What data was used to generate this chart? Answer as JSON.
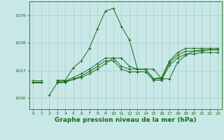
{
  "background_color": "#c8e8e8",
  "grid_color": "#aacccc",
  "line_color": "#1a6b1a",
  "xlabel": "Graphe pression niveau de la mer (hPa)",
  "xlabel_fontsize": 6.5,
  "xlim": [
    -0.5,
    23.5
  ],
  "ylim": [
    1035.6,
    1039.5
  ],
  "yticks": [
    1036,
    1037,
    1038,
    1039
  ],
  "xticks": [
    0,
    1,
    2,
    3,
    4,
    5,
    6,
    7,
    8,
    9,
    10,
    11,
    12,
    13,
    14,
    15,
    16,
    17,
    18,
    19,
    20,
    21,
    22,
    23
  ],
  "series1": {
    "x": [
      0,
      1,
      2,
      3,
      4,
      5,
      6,
      7,
      8,
      9,
      10,
      11,
      12,
      13,
      14,
      15,
      16,
      17,
      18,
      19,
      20,
      21,
      22,
      23
    ],
    "y": [
      1036.65,
      1036.65,
      null,
      1036.65,
      1036.65,
      1037.1,
      1037.35,
      1037.8,
      1038.5,
      1039.15,
      1039.25,
      1038.6,
      1038.1,
      1037.05,
      1037.05,
      1036.7,
      1036.75,
      1037.35,
      1037.65,
      1037.8,
      1037.8,
      1037.8,
      1037.8,
      1037.8
    ]
  },
  "series2": {
    "x": [
      0,
      1,
      2,
      3,
      4,
      5,
      6,
      7,
      8,
      9,
      10,
      11,
      12,
      13,
      14,
      15,
      16,
      17,
      18,
      19,
      20,
      21,
      22,
      23
    ],
    "y": [
      1036.6,
      1036.6,
      null,
      1036.6,
      1036.62,
      1036.75,
      1036.88,
      1037.05,
      1037.25,
      1037.45,
      1037.45,
      1037.15,
      1037.05,
      1037.05,
      1037.05,
      1036.7,
      1036.7,
      1037.3,
      1037.55,
      1037.7,
      1037.7,
      1037.75,
      1037.75,
      1037.75
    ]
  },
  "series3": {
    "x": [
      0,
      1,
      2,
      3,
      4,
      5,
      6,
      7,
      8,
      9,
      10,
      11,
      12,
      13,
      14,
      15,
      16,
      17,
      18,
      19,
      20,
      21,
      22,
      23
    ],
    "y": [
      1036.55,
      1036.55,
      null,
      1036.55,
      1036.57,
      1036.68,
      1036.8,
      1036.96,
      1037.15,
      1037.35,
      1037.35,
      1037.05,
      1036.95,
      1036.95,
      1036.95,
      1036.65,
      1036.65,
      1037.2,
      1037.45,
      1037.6,
      1037.6,
      1037.65,
      1037.65,
      1037.65
    ]
  },
  "series4": {
    "x": [
      2,
      3,
      4,
      5,
      6,
      7,
      8,
      9,
      10,
      11,
      12,
      13,
      14,
      15,
      16,
      17,
      18,
      19,
      20,
      21,
      22,
      23
    ],
    "y": [
      1036.1,
      1036.55,
      1036.6,
      1036.68,
      1036.75,
      1036.88,
      1037.05,
      1037.25,
      1037.45,
      1037.45,
      1037.15,
      1037.05,
      1037.05,
      1037.05,
      1036.7,
      1036.7,
      1037.3,
      1037.55,
      1037.7,
      1037.7,
      1037.75,
      1037.75
    ]
  }
}
